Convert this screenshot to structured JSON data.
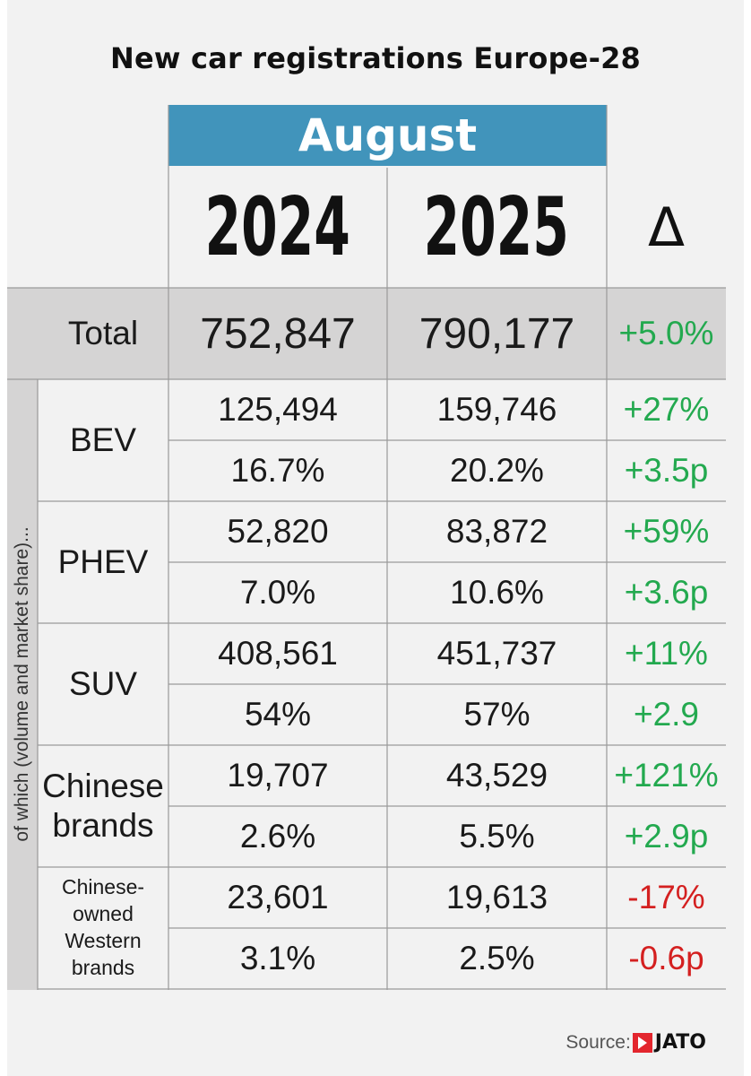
{
  "title": "New car registrations Europe-28",
  "month": "August",
  "years": [
    "2024",
    "2025"
  ],
  "delta_symbol": "Δ",
  "side_label": "of which (volume and market share)...",
  "source_label": "Source:",
  "source_brand": "JATO",
  "colors": {
    "header": "#4194bb",
    "positive": "#23a94f",
    "negative": "#d42020",
    "shade": "#d5d4d4",
    "background": "#f2f2f2"
  },
  "chart_data": {
    "type": "table",
    "title": "New car registrations Europe-28",
    "columns": [
      "2024",
      "2025",
      "Δ"
    ],
    "total": {
      "label": "Total",
      "v2024": "752,847",
      "v2025": "790,177",
      "delta": "+5.0%",
      "sign": "pos"
    },
    "groups": [
      {
        "label": [
          "BEV"
        ],
        "small": false,
        "rows": [
          {
            "v2024": "125,494",
            "v2025": "159,746",
            "delta": "+27%",
            "sign": "pos"
          },
          {
            "v2024": "16.7%",
            "v2025": "20.2%",
            "delta": "+3.5p",
            "sign": "pos"
          }
        ]
      },
      {
        "label": [
          "PHEV"
        ],
        "small": false,
        "rows": [
          {
            "v2024": "52,820",
            "v2025": "83,872",
            "delta": "+59%",
            "sign": "pos"
          },
          {
            "v2024": "7.0%",
            "v2025": "10.6%",
            "delta": "+3.6p",
            "sign": "pos"
          }
        ]
      },
      {
        "label": [
          "SUV"
        ],
        "small": false,
        "rows": [
          {
            "v2024": "408,561",
            "v2025": "451,737",
            "delta": "+11%",
            "sign": "pos"
          },
          {
            "v2024": "54%",
            "v2025": "57%",
            "delta": "+2.9",
            "sign": "pos"
          }
        ]
      },
      {
        "label": [
          "Chinese",
          "brands"
        ],
        "small": false,
        "rows": [
          {
            "v2024": "19,707",
            "v2025": "43,529",
            "delta": "+121%",
            "sign": "pos"
          },
          {
            "v2024": "2.6%",
            "v2025": "5.5%",
            "delta": "+2.9p",
            "sign": "pos"
          }
        ]
      },
      {
        "label": [
          "Chinese-",
          "owned",
          "Western",
          "brands"
        ],
        "small": true,
        "rows": [
          {
            "v2024": "23,601",
            "v2025": "19,613",
            "delta": "-17%",
            "sign": "neg"
          },
          {
            "v2024": "3.1%",
            "v2025": "2.5%",
            "delta": "-0.6p",
            "sign": "neg"
          }
        ]
      }
    ]
  }
}
